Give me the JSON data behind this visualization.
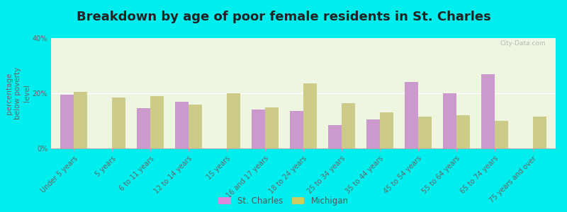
{
  "title": "Breakdown by age of poor female residents in St. Charles",
  "ylabel": "percentage\nbelow poverty\nlevel",
  "categories": [
    "Under 5 years",
    "5 years",
    "6 to 11 years",
    "12 to 14 years",
    "15 years",
    "16 and 17 years",
    "18 to 24 years",
    "25 to 34 years",
    "35 to 44 years",
    "45 to 54 years",
    "55 to 64 years",
    "65 to 74 years",
    "75 years and over"
  ],
  "st_charles": [
    19.5,
    0,
    14.5,
    17.0,
    0,
    14.0,
    13.5,
    8.5,
    10.5,
    24.0,
    20.0,
    27.0,
    0
  ],
  "michigan": [
    20.5,
    18.5,
    19.0,
    16.0,
    20.0,
    15.0,
    23.5,
    16.5,
    13.0,
    11.5,
    12.0,
    10.0,
    11.5
  ],
  "st_charles_color": "#cc99cc",
  "michigan_color": "#cccc88",
  "background_color": "#00eeee",
  "plot_bg_color": "#eef5e0",
  "ylim": [
    0,
    40
  ],
  "yticks": [
    0,
    20,
    40
  ],
  "ytick_labels": [
    "0%",
    "20%",
    "40%"
  ],
  "bar_width": 0.35,
  "title_fontsize": 13,
  "axis_label_fontsize": 7.5,
  "tick_fontsize": 7,
  "legend_labels": [
    "St. Charles",
    "Michigan"
  ],
  "watermark": "City-Data.com",
  "legend_marker_color_1": "#dd88dd",
  "legend_marker_color_2": "#cccc66"
}
